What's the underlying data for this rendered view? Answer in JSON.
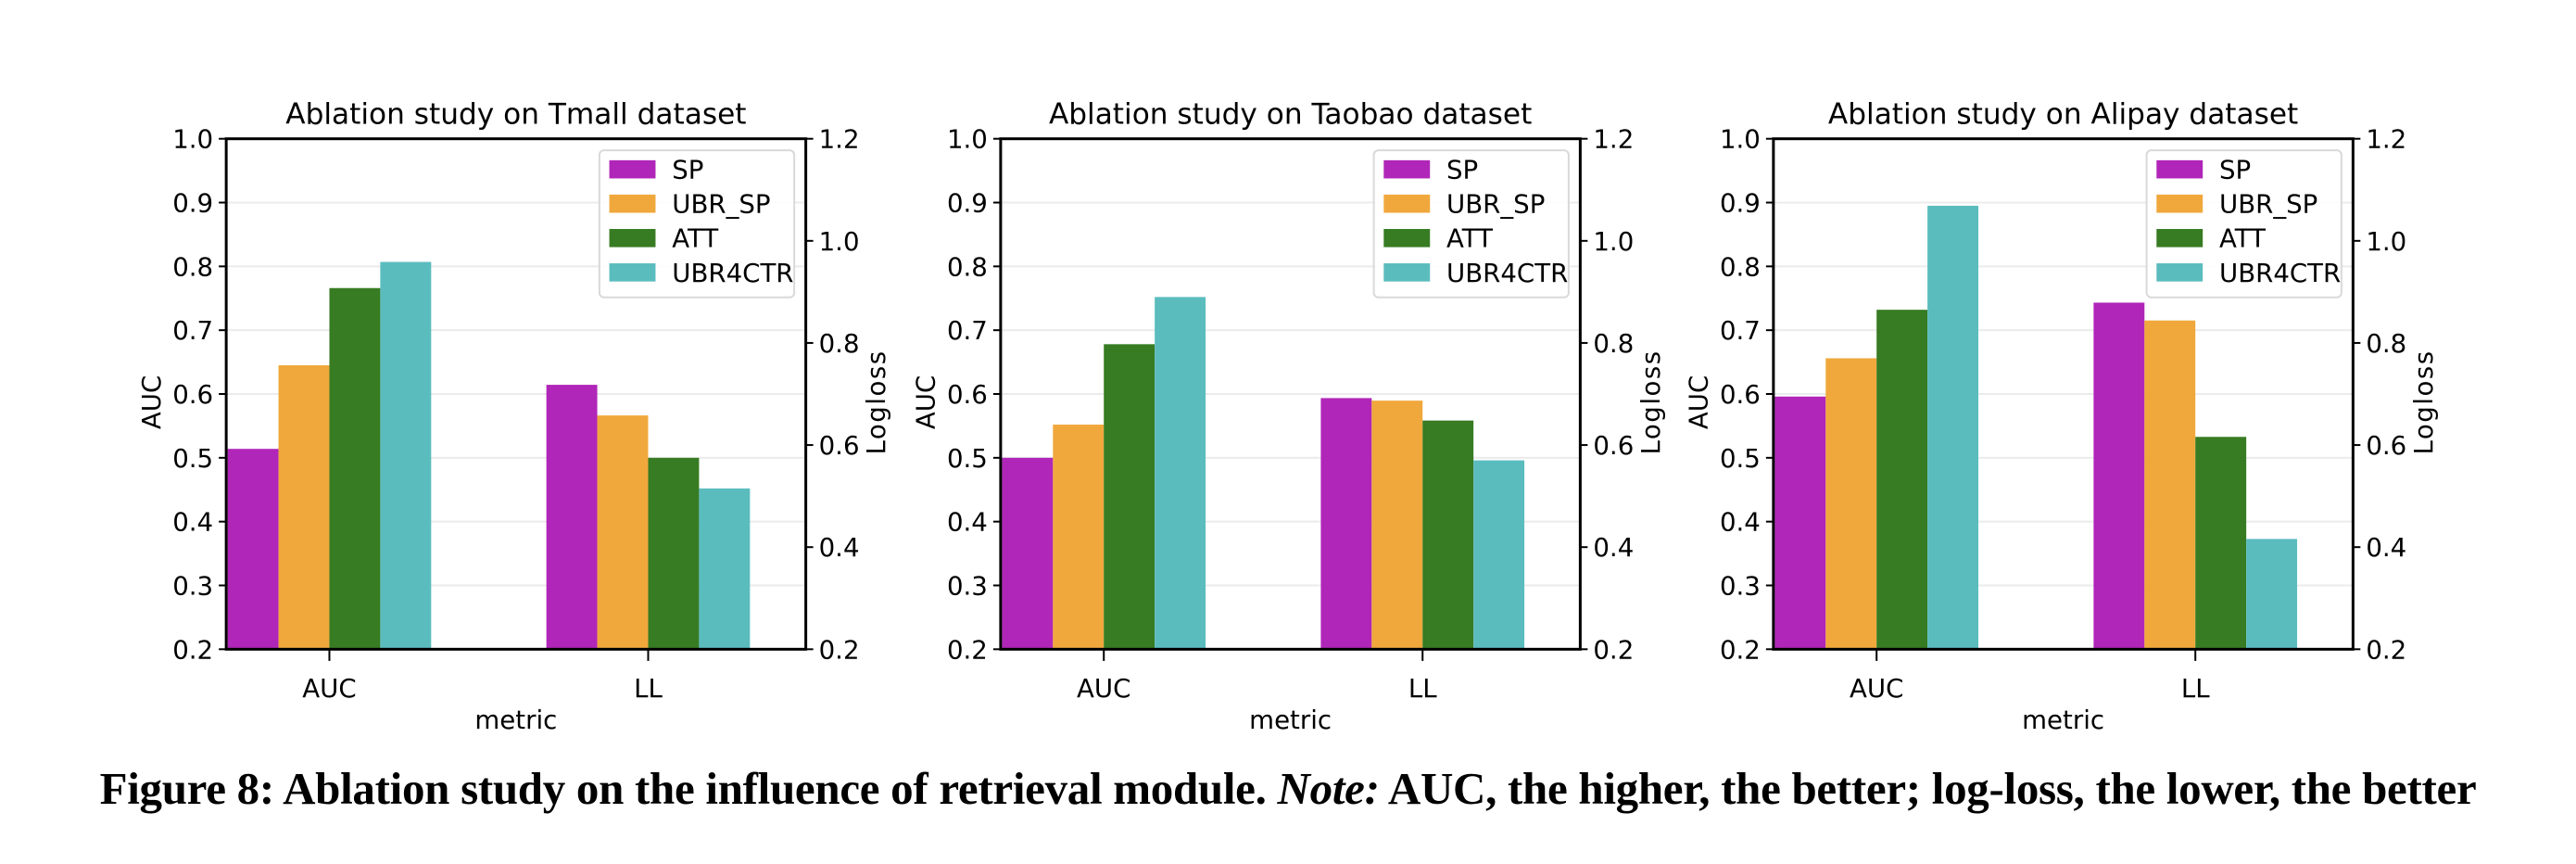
{
  "figure": {
    "caption_prefix": "Figure 8: Ablation study on the influence of retrieval module.",
    "caption_note_label": "Note:",
    "caption_note_text": "AUC, the higher, the better; log-loss, the lower, the better"
  },
  "colors": {
    "SP": "#b026b8",
    "UBR_SP": "#f0a83c",
    "ATT": "#377b22",
    "UBR4CTR": "#5bbcbe"
  },
  "chart_data": [
    {
      "type": "bar",
      "title": "Ablation study on Tmall dataset",
      "xlabel": "metric",
      "ylabel": "AUC",
      "ylabel_right": "Logloss",
      "categories": [
        "AUC",
        "LL"
      ],
      "ylim": [
        0.2,
        1.0
      ],
      "ylim_right": [
        0.2,
        1.2
      ],
      "yticks": [
        "0.2",
        "0.3",
        "0.4",
        "0.5",
        "0.6",
        "0.7",
        "0.8",
        "0.9",
        "1.0"
      ],
      "yticks_right": [
        "0.2",
        "0.4",
        "0.6",
        "0.8",
        "1.0",
        "1.2"
      ],
      "grid": true,
      "legend_position": "top-right",
      "note": "AUC group plotted on left axis; LL group plotted on right axis",
      "series": [
        {
          "name": "SP",
          "values": [
            0.514,
            0.718
          ]
        },
        {
          "name": "UBR_SP",
          "values": [
            0.645,
            0.658
          ]
        },
        {
          "name": "ATT",
          "values": [
            0.766,
            0.575
          ]
        },
        {
          "name": "UBR4CTR",
          "values": [
            0.807,
            0.515
          ]
        }
      ]
    },
    {
      "type": "bar",
      "title": "Ablation study on Taobao dataset",
      "xlabel": "metric",
      "ylabel": "AUC",
      "ylabel_right": "Logloss",
      "categories": [
        "AUC",
        "LL"
      ],
      "ylim": [
        0.2,
        1.0
      ],
      "ylim_right": [
        0.2,
        1.2
      ],
      "yticks": [
        "0.2",
        "0.3",
        "0.4",
        "0.5",
        "0.6",
        "0.7",
        "0.8",
        "0.9",
        "1.0"
      ],
      "yticks_right": [
        "0.2",
        "0.4",
        "0.6",
        "0.8",
        "1.0",
        "1.2"
      ],
      "grid": true,
      "legend_position": "top-right",
      "note": "AUC group plotted on left axis; LL group plotted on right axis",
      "series": [
        {
          "name": "SP",
          "values": [
            0.5,
            0.692
          ]
        },
        {
          "name": "UBR_SP",
          "values": [
            0.552,
            0.687
          ]
        },
        {
          "name": "ATT",
          "values": [
            0.678,
            0.648
          ]
        },
        {
          "name": "UBR4CTR",
          "values": [
            0.752,
            0.57
          ]
        }
      ]
    },
    {
      "type": "bar",
      "title": "Ablation study on Alipay dataset",
      "xlabel": "metric",
      "ylabel": "AUC",
      "ylabel_right": "Logloss",
      "categories": [
        "AUC",
        "LL"
      ],
      "ylim": [
        0.2,
        1.0
      ],
      "ylim_right": [
        0.2,
        1.2
      ],
      "yticks": [
        "0.2",
        "0.3",
        "0.4",
        "0.5",
        "0.6",
        "0.7",
        "0.8",
        "0.9",
        "1.0"
      ],
      "yticks_right": [
        "0.2",
        "0.4",
        "0.6",
        "0.8",
        "1.0",
        "1.2"
      ],
      "grid": true,
      "legend_position": "top-right",
      "note": "AUC group plotted on left axis; LL group plotted on right axis",
      "series": [
        {
          "name": "SP",
          "values": [
            0.596,
            0.879
          ]
        },
        {
          "name": "UBR_SP",
          "values": [
            0.656,
            0.844
          ]
        },
        {
          "name": "ATT",
          "values": [
            0.732,
            0.616
          ]
        },
        {
          "name": "UBR4CTR",
          "values": [
            0.895,
            0.416
          ]
        }
      ]
    }
  ]
}
